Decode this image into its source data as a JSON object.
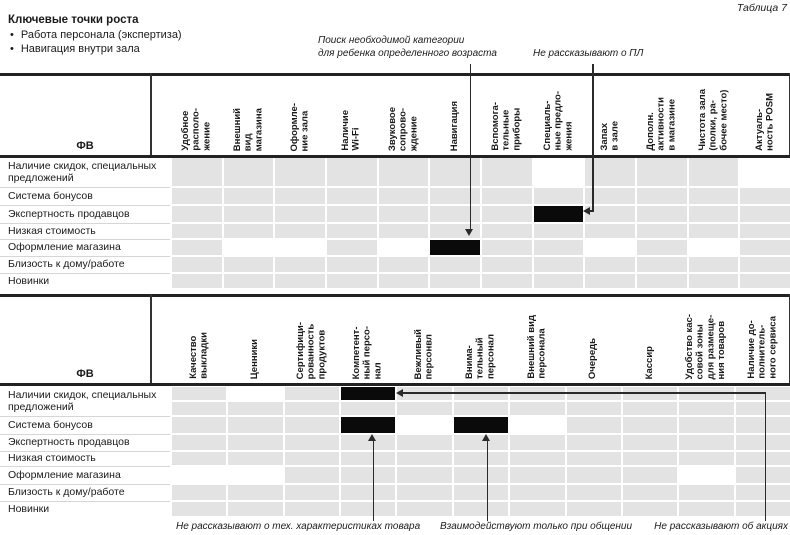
{
  "page": {
    "table_caption": "Таблица 7"
  },
  "intro": {
    "title": "Ключевые точки роста",
    "bullets": [
      "Работа персонала (экспертиза)",
      "Навигация внутри зала"
    ]
  },
  "annotations": {
    "top": [
      {
        "text": "Поиск необходимой категории\nдля ребенка определенного возраста"
      },
      {
        "text": "Не рассказывают о ПЛ"
      }
    ],
    "bottom": [
      {
        "text": "Не рассказывают о тех. характеристиках товара"
      },
      {
        "text": "Взаимодействуют только при общении"
      },
      {
        "text": "Не рассказывают об акциях"
      }
    ]
  },
  "cell_states": {
    "g": "gray",
    "w": "white-highlight",
    "b": "black-highlight"
  },
  "table1": {
    "corner_label": "ФВ",
    "col_headers": [
      "Удобное\nрасполо-\nжение",
      "Внешний\nвид\nмагазина",
      "Оформле-\nние зала",
      "Наличие\nWi-Fi",
      "Звуковое\nсопрово-\nждение",
      "Навигация",
      "Вспомога-\nтельные\nприборы",
      "Специаль-\nные предло-\nжения",
      "Запах\nв зале",
      "Дополн.\nактивности\nв магазине",
      "Чистота зала\n(полки, ра-\nбочее место)",
      "Актуаль-\nность POSM"
    ],
    "rows": [
      {
        "label": "Наличие скидок, специальных предложений",
        "cells": [
          "g",
          "g",
          "g",
          "g",
          "g",
          "g",
          "g",
          "w",
          "g",
          "g",
          "g",
          "w"
        ]
      },
      {
        "label": "Система бонусов",
        "cells": [
          "g",
          "g",
          "g",
          "g",
          "g",
          "g",
          "g",
          "g",
          "g",
          "g",
          "g",
          "g"
        ]
      },
      {
        "label": "Экспертность продавцов",
        "cells": [
          "g",
          "g",
          "g",
          "g",
          "g",
          "g",
          "g",
          "b",
          "g",
          "g",
          "g",
          "g"
        ]
      },
      {
        "label": "Низкая стоимость",
        "cells": [
          "g",
          "g",
          "g",
          "g",
          "g",
          "g",
          "g",
          "g",
          "g",
          "g",
          "g",
          "g"
        ]
      },
      {
        "label": "Оформление магазина",
        "cells": [
          "g",
          "w",
          "w",
          "g",
          "w",
          "b",
          "g",
          "g",
          "w",
          "g",
          "w",
          "g"
        ]
      },
      {
        "label": "Близость к дому/работе",
        "cells": [
          "g",
          "g",
          "g",
          "g",
          "g",
          "g",
          "g",
          "g",
          "g",
          "g",
          "g",
          "g"
        ]
      },
      {
        "label": "Новинки",
        "cells": [
          "g",
          "g",
          "g",
          "g",
          "g",
          "g",
          "g",
          "g",
          "g",
          "g",
          "g",
          "g"
        ]
      }
    ]
  },
  "table2": {
    "corner_label": "ФВ",
    "col_headers": [
      "Качество\nвыкладки",
      "Ценники",
      "Сертифици-\nрованность\nпродуктов",
      "Компетент-\nный персо-\nнал",
      "Вежливый\nперсонвл",
      "Внима-\nтельный\nперсонал",
      "Внешний вид\nперсонала",
      "Очередь",
      "Кассир",
      "Удобство кас-\nсовой зоны\nдля размеще-\nния товаров",
      "Наличие до-\nполнитель-\nного сервиса"
    ],
    "rows": [
      {
        "label": "Наличии скидок, специальных предложений",
        "rowspan": 2,
        "cells": [
          "g",
          "w",
          "g",
          "b",
          "g",
          "g",
          "g",
          "g",
          "g",
          "g",
          "g"
        ]
      },
      {
        "cells": [
          "g",
          "g",
          "g",
          "g",
          "g",
          "g",
          "g",
          "g",
          "g",
          "g",
          "g"
        ]
      },
      {
        "label": "Система бонусов",
        "cells": [
          "g",
          "g",
          "g",
          "b",
          "w",
          "b",
          "w",
          "g",
          "g",
          "g",
          "g"
        ]
      },
      {
        "label": "Экспертность продавцов",
        "cells": [
          "g",
          "g",
          "g",
          "g",
          "g",
          "g",
          "g",
          "g",
          "g",
          "g",
          "g"
        ]
      },
      {
        "label": "Низкая стоимость",
        "cells": [
          "g",
          "g",
          "g",
          "g",
          "g",
          "g",
          "g",
          "g",
          "g",
          "g",
          "g"
        ]
      },
      {
        "label": "Оформление магазина",
        "cells": [
          "w",
          "w",
          "g",
          "g",
          "g",
          "g",
          "g",
          "g",
          "g",
          "w",
          "g"
        ]
      },
      {
        "label": "Близость к дому/работе",
        "cells": [
          "g",
          "g",
          "g",
          "g",
          "g",
          "g",
          "g",
          "g",
          "g",
          "g",
          "g"
        ]
      },
      {
        "label": "Новинки",
        "cells": [
          "g",
          "g",
          "g",
          "g",
          "g",
          "g",
          "g",
          "g",
          "g",
          "g",
          "g"
        ]
      }
    ]
  }
}
